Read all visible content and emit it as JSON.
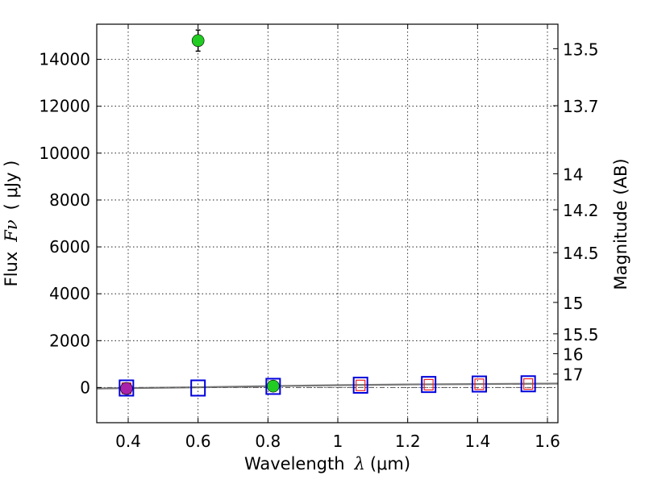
{
  "chart_data": {
    "type": "scatter",
    "title": "",
    "xlabel_text": "Wavelength",
    "xlabel_symbol": "λ",
    "xlabel_unit": "(μm)",
    "ylabel_text": "Flux",
    "ylabel_symbol": "Fν",
    "ylabel_unit": "( μJy )",
    "y2label": "Magnitude (AB)",
    "xlim": [
      0.31,
      1.63
    ],
    "ylim": [
      -1500,
      15500
    ],
    "grid": true,
    "xticks": [
      {
        "value": 0.4,
        "label": "0.4"
      },
      {
        "value": 0.6,
        "label": "0.6"
      },
      {
        "value": 0.8,
        "label": "0.8"
      },
      {
        "value": 1.0,
        "label": "1"
      },
      {
        "value": 1.2,
        "label": "1.2"
      },
      {
        "value": 1.4,
        "label": "1.4"
      },
      {
        "value": 1.6,
        "label": "1.6"
      }
    ],
    "yticks": [
      {
        "value": 0,
        "label": "0"
      },
      {
        "value": 2000,
        "label": "2000"
      },
      {
        "value": 4000,
        "label": "4000"
      },
      {
        "value": 6000,
        "label": "6000"
      },
      {
        "value": 8000,
        "label": "8000"
      },
      {
        "value": 10000,
        "label": "10000"
      },
      {
        "value": 12000,
        "label": "12000"
      },
      {
        "value": 14000,
        "label": "14000"
      }
    ],
    "y2ticks": [
      {
        "value": 13.5,
        "label": "13.5"
      },
      {
        "value": 13.7,
        "label": "13.7"
      },
      {
        "value": 14,
        "label": "14"
      },
      {
        "value": 14.2,
        "label": "14.2"
      },
      {
        "value": 14.5,
        "label": "14.5"
      },
      {
        "value": 15,
        "label": "15"
      },
      {
        "value": 15.5,
        "label": "15.5"
      },
      {
        "value": 16,
        "label": "16"
      },
      {
        "value": 17,
        "label": "17"
      }
    ],
    "series": [
      {
        "name": "observed-green",
        "marker": "circle",
        "color": "#22cc22",
        "points": [
          {
            "x": 0.6,
            "y": 14800,
            "yerr": 450
          },
          {
            "x": 0.815,
            "y": 60,
            "yerr": 0
          }
        ]
      },
      {
        "name": "observed-magenta",
        "marker": "circle",
        "color": "#aa22aa",
        "points": [
          {
            "x": 0.395,
            "y": -40,
            "yerr": 0
          }
        ]
      },
      {
        "name": "model-blue",
        "marker": "square-open",
        "color": "#0000dd",
        "points": [
          {
            "x": 0.395,
            "y": -20
          },
          {
            "x": 0.6,
            "y": -20
          },
          {
            "x": 0.815,
            "y": 50
          },
          {
            "x": 1.065,
            "y": 100
          },
          {
            "x": 1.26,
            "y": 130
          },
          {
            "x": 1.405,
            "y": 150
          },
          {
            "x": 1.545,
            "y": 160
          }
        ]
      },
      {
        "name": "model-red",
        "marker": "square-open-small",
        "color": "#ee2222",
        "points": [
          {
            "x": 0.395,
            "y": -30
          },
          {
            "x": 1.065,
            "y": 90
          },
          {
            "x": 1.26,
            "y": 120
          },
          {
            "x": 1.405,
            "y": 140
          },
          {
            "x": 1.545,
            "y": 150
          }
        ]
      }
    ],
    "lines": [
      {
        "name": "model-curve",
        "color": "#777777",
        "style": "solid",
        "points": [
          [
            0.31,
            -40
          ],
          [
            0.6,
            10
          ],
          [
            0.8,
            60
          ],
          [
            1.0,
            100
          ],
          [
            1.2,
            130
          ],
          [
            1.4,
            150
          ],
          [
            1.63,
            170
          ]
        ]
      },
      {
        "name": "baseline",
        "color": "#555555",
        "style": "dashdot",
        "points": [
          [
            0.31,
            0
          ],
          [
            1.63,
            0
          ]
        ]
      }
    ]
  }
}
